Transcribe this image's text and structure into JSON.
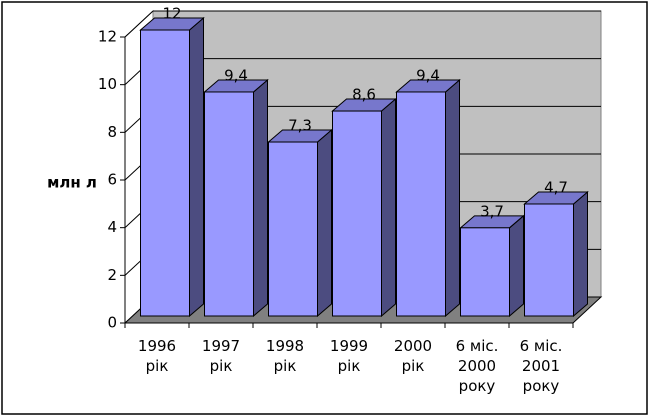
{
  "chart_data": {
    "type": "bar3d",
    "y_label": "млн л",
    "categories": [
      "1996\nрік",
      "1997\nрік",
      "1998\nрік",
      "1999\nрік",
      "2000\nрік",
      "6 міс.\n2000\nроку",
      "6 міс.\n2001\nроку"
    ],
    "values": [
      12,
      9.4,
      7.3,
      8.6,
      9.4,
      3.7,
      4.7
    ],
    "value_labels": [
      "12",
      "9,4",
      "7,3",
      "8,6",
      "9,4",
      "3,7",
      "4,7"
    ],
    "color": "#9999ff",
    "ylim": [
      0,
      12
    ],
    "yticks": [
      0,
      2,
      4,
      6,
      8,
      10,
      12
    ],
    "grid": true
  }
}
